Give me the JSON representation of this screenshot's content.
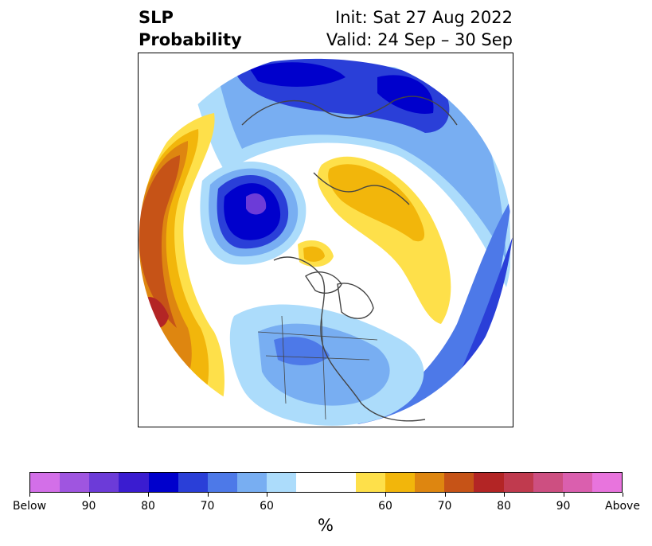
{
  "title": {
    "left_line1": "SLP",
    "left_line2": "Probability",
    "right_line1": "Init: Sat 27 Aug 2022",
    "right_line2": "Valid: 24 Sep – 30 Sep"
  },
  "colorbar": {
    "colors": [
      "#d36fe8",
      "#9f55e0",
      "#6c3bd8",
      "#3a1cd0",
      "#0000cc",
      "#2a3fd8",
      "#4d79e8",
      "#78aef2",
      "#acdcfb",
      "#ffffff",
      "#ffffff",
      "#fee04a",
      "#f2b60b",
      "#de8610",
      "#c65317",
      "#b32525",
      "#c03a4e",
      "#cd4f81",
      "#da5fae",
      "#e874dd"
    ],
    "tick_labels": [
      "Below",
      "90",
      "80",
      "70",
      "60",
      "60",
      "70",
      "80",
      "90",
      "Above"
    ],
    "units": "%"
  },
  "map": {
    "projection": "north-polar-stereographic",
    "legend_colors": {
      "below_strong": "#0000cc",
      "below_mid": "#2a3fd8",
      "below_weak": "#78aef2",
      "below_light": "#acdcfb",
      "above_light": "#fee04a",
      "above_mid": "#f2b60b",
      "above_strong": "#de8610",
      "above_stronger": "#c65317",
      "above_max": "#b32525"
    }
  }
}
